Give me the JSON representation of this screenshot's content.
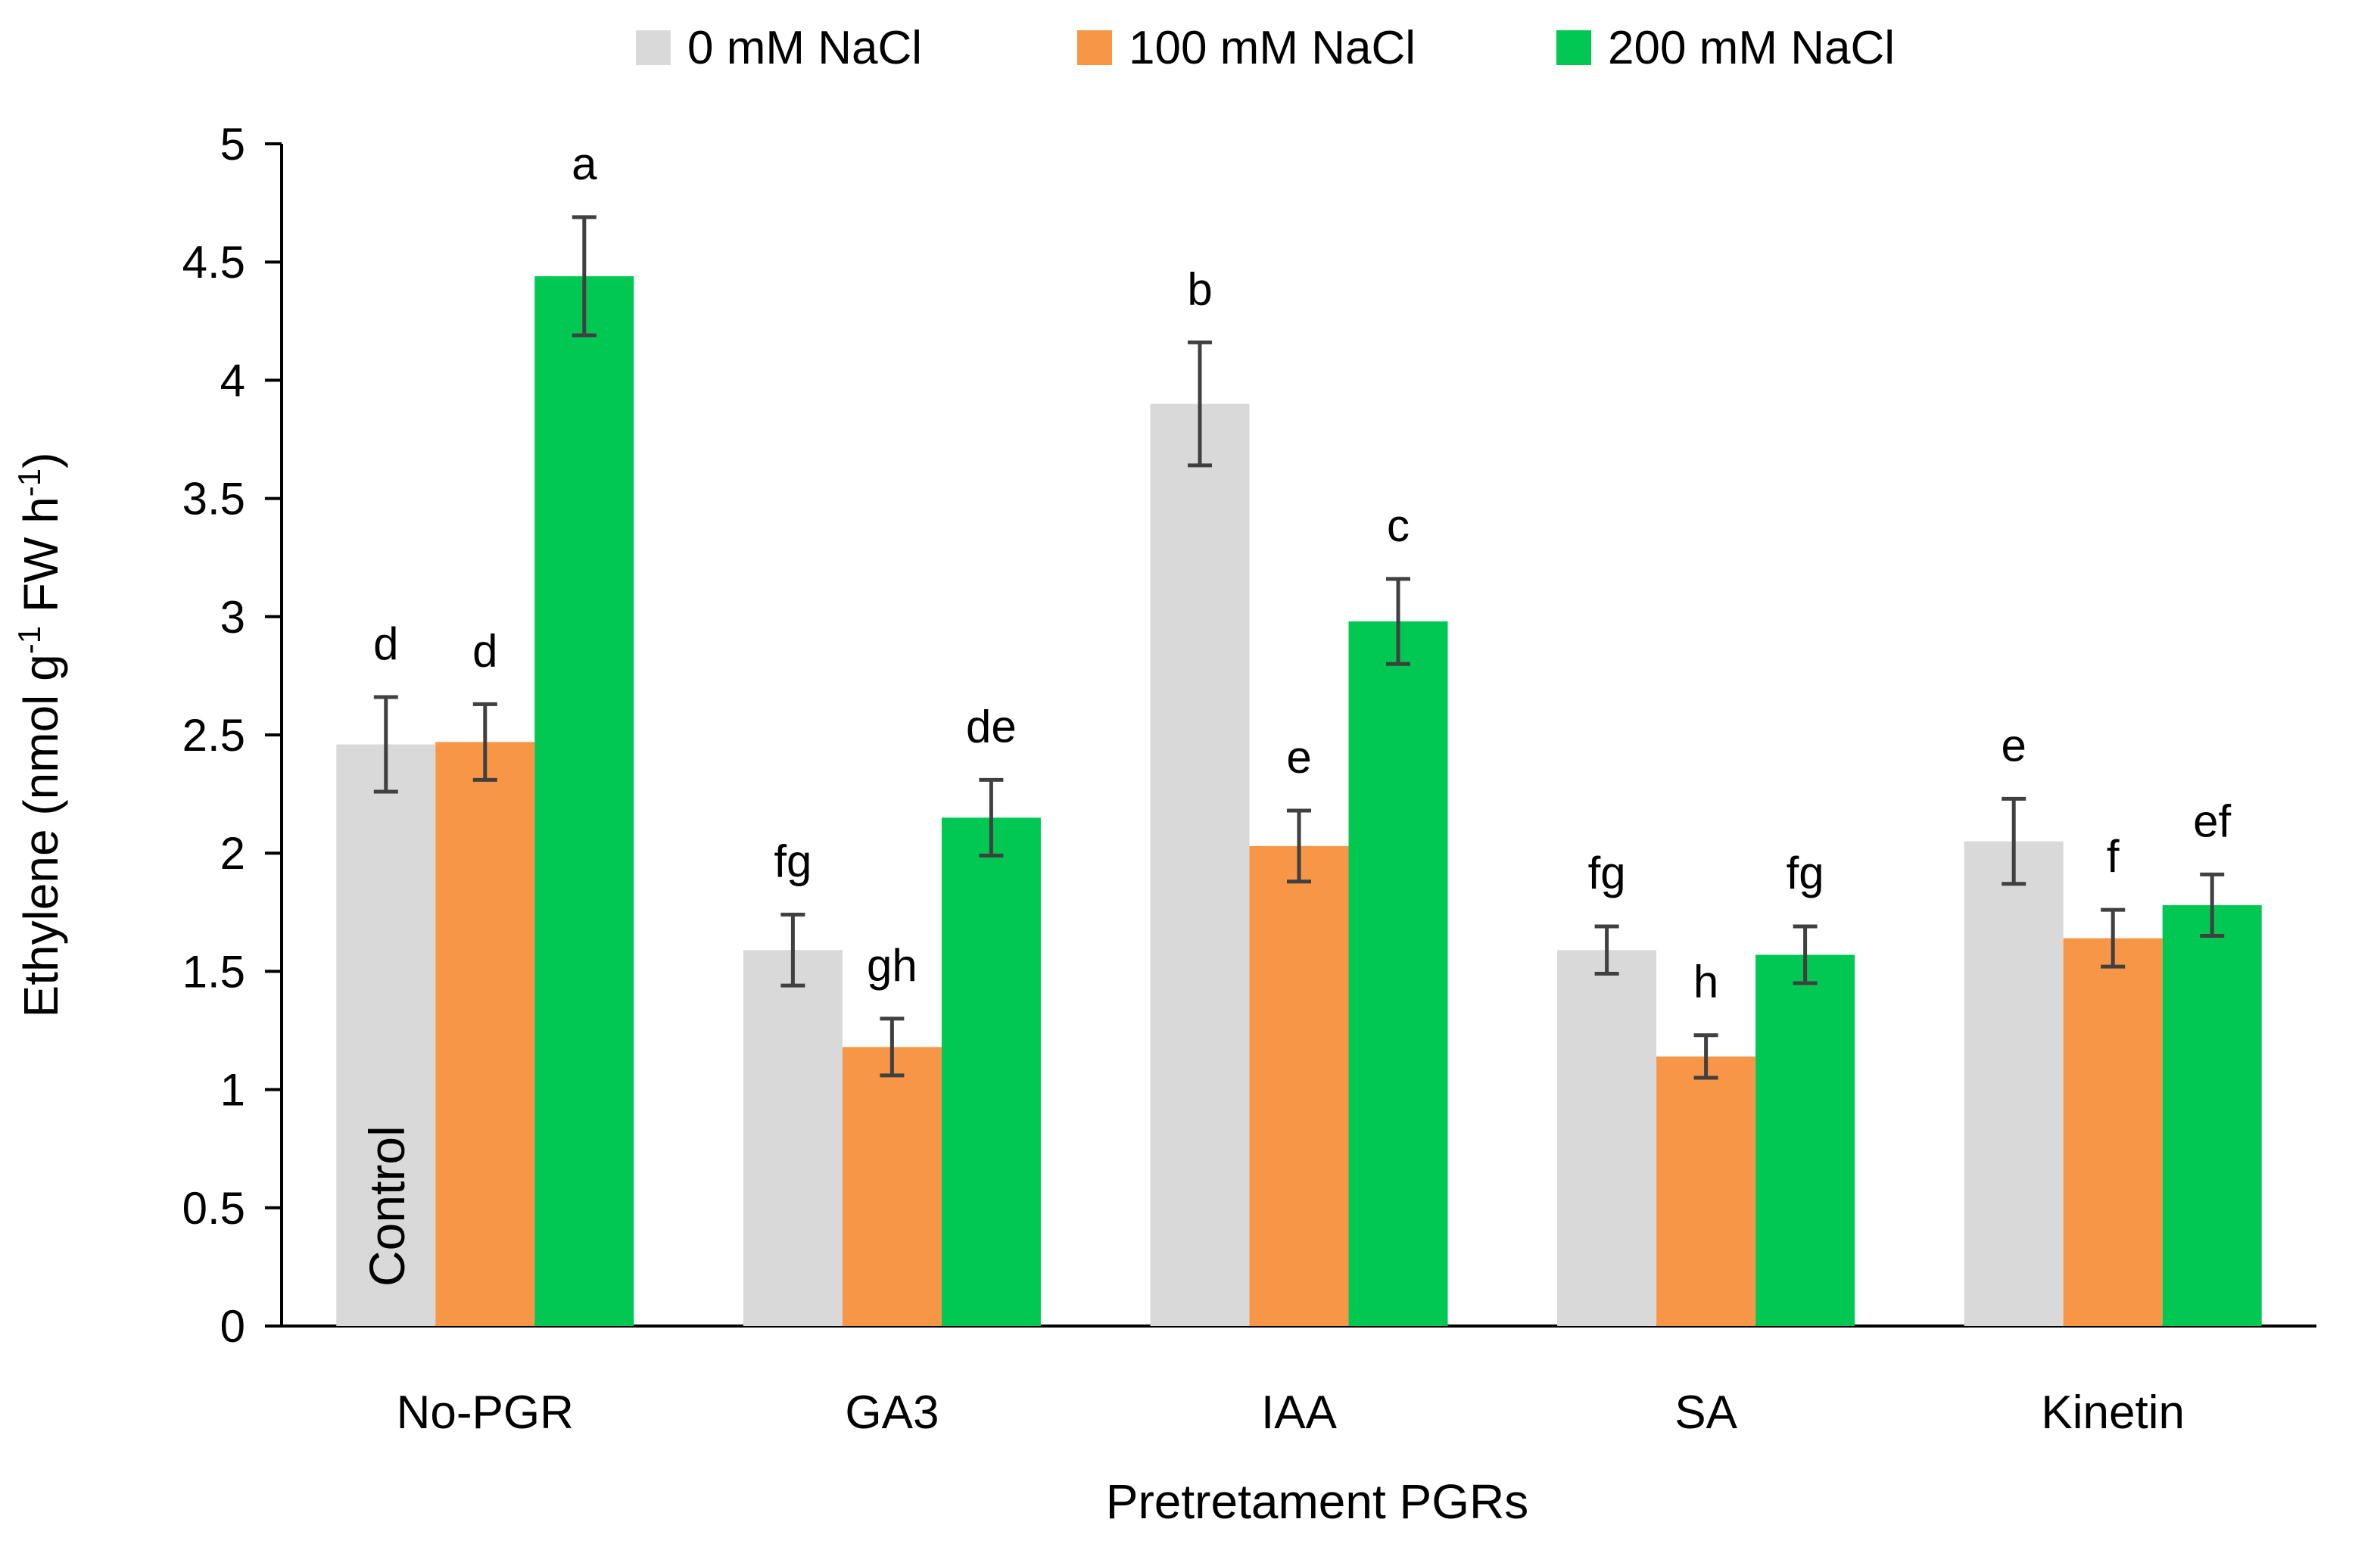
{
  "chart_data": {
    "type": "bar",
    "title": "",
    "xlabel": "Pretretament PGRs",
    "ylabel_parts": {
      "main": "Ethylene (nmol g",
      "sup1": "-1",
      "mid": " FW h",
      "sup2": "-1",
      "end": ")"
    },
    "ylim": [
      0,
      5
    ],
    "yticks": [
      0,
      0.5,
      1,
      1.5,
      2,
      2.5,
      3,
      3.5,
      4,
      4.5,
      5
    ],
    "ytick_labels": [
      "0",
      "0.5",
      "1",
      "1.5",
      "2",
      "2.5",
      "3",
      "3.5",
      "4",
      "4.5",
      "5"
    ],
    "categories": [
      "No-PGR",
      "GA3",
      "IAA",
      "SA",
      "Kinetin"
    ],
    "series": [
      {
        "name": "0 mM NaCl",
        "color": "#d9d9d9",
        "values": [
          2.46,
          1.59,
          3.9,
          1.59,
          2.05
        ],
        "errors": [
          0.2,
          0.15,
          0.26,
          0.1,
          0.18
        ],
        "labels": [
          "d",
          "fg",
          "b",
          "fg",
          "e"
        ]
      },
      {
        "name": "100 mM NaCl",
        "color": "#f79646",
        "values": [
          2.47,
          1.18,
          2.03,
          1.14,
          1.64
        ],
        "errors": [
          0.16,
          0.12,
          0.15,
          0.09,
          0.12
        ],
        "labels": [
          "d",
          "gh",
          "e",
          "h",
          "f"
        ]
      },
      {
        "name": "200 mM NaCl",
        "color": "#00c853",
        "values": [
          4.44,
          2.15,
          2.98,
          1.57,
          1.78
        ],
        "errors": [
          0.25,
          0.16,
          0.18,
          0.12,
          0.13
        ],
        "labels": [
          "a",
          "de",
          "c",
          "fg",
          "ef"
        ]
      }
    ],
    "legend_position": "top-center",
    "grid": false,
    "annotation": "Control"
  },
  "colors": {
    "axis": "#000000",
    "error_bar": "#404040"
  }
}
